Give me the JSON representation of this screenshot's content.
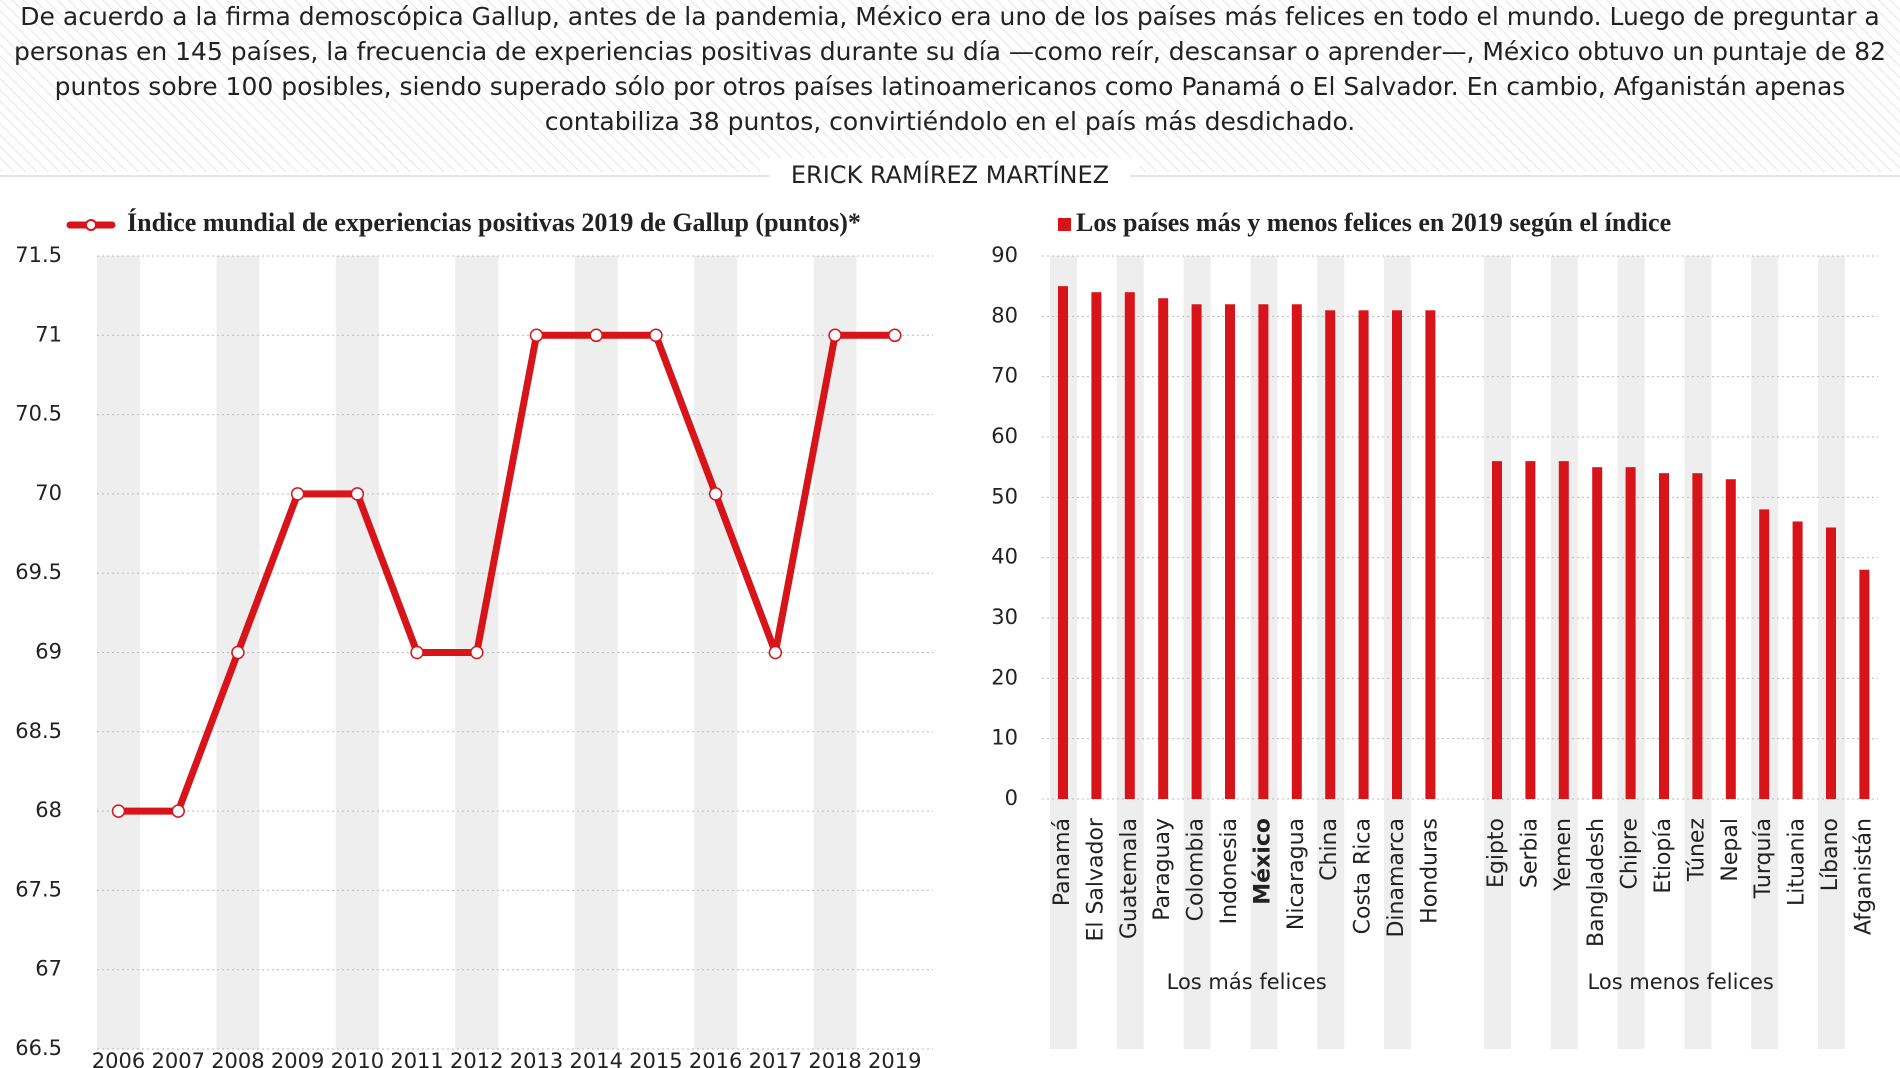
{
  "intro": {
    "text_lines": [
      "De acuerdo a la firma demoscópica Gallup, antes de la pandemia, México era uno de los países más felices en todo el mundo. Luego de preguntar a",
      "personas en 145 países, la frecuencia de experiencias positivas durante su día —como reír, descansar o aprender—, México obtuvo un puntaje de 82",
      "puntos sobre 100 posibles, siendo superado sólo por otros países latinoamericanos como Panamá o El Salvador. En cambio, Afganistán apenas",
      "contabiliza 38 puntos, convirtiéndolo en el país más desdichado."
    ],
    "byline": "ERICK RAMÍREZ MARTÍNEZ"
  },
  "chart_data": [
    {
      "type": "line",
      "title": "Índice mundial de experiencias positivas 2019 de Gallup (puntos)*",
      "categories": [
        "2006",
        "2007",
        "2008",
        "2009",
        "2010",
        "2011",
        "2012",
        "2013",
        "2014",
        "2015",
        "2016",
        "2017",
        "2018",
        "2019"
      ],
      "series": [
        {
          "name": "Índice mundial de experiencias positivas 2019 de Gallup (puntos)*",
          "color": "#d7141a",
          "values": [
            68,
            68,
            69,
            70,
            70,
            69,
            69,
            71,
            71,
            71,
            70,
            69,
            71,
            71
          ]
        }
      ],
      "ylim": [
        66.5,
        71.5
      ],
      "yticks": [
        66.5,
        67,
        67.5,
        68,
        68.5,
        69,
        69.5,
        70,
        70.5,
        71,
        71.5
      ],
      "grid": true
    },
    {
      "type": "bar",
      "title": "Los países más y menos felices en 2019 según el índice",
      "color": "#d7141a",
      "groups": [
        {
          "name": "Los más felices",
          "highlight": 6,
          "categories": [
            "Panamá",
            "El Salvador",
            "Guatemala",
            "Paraguay",
            "Colombia",
            "Indonesia",
            "México",
            "Nicaragua",
            "China",
            "Costa Rica",
            "Dinamarca",
            "Honduras"
          ],
          "values": [
            85,
            84,
            84,
            83,
            82,
            82,
            82,
            82,
            81,
            81,
            81,
            81
          ]
        },
        {
          "name": "Los menos felices",
          "categories": [
            "Egipto",
            "Serbia",
            "Yemen",
            "Bangladesh",
            "Chipre",
            "Etiopía",
            "Túnez",
            "Nepal",
            "Turquía",
            "Lituania",
            "Líbano",
            "Afganistán"
          ],
          "values": [
            56,
            56,
            56,
            55,
            55,
            54,
            54,
            53,
            48,
            46,
            45,
            38
          ]
        }
      ],
      "ylim": [
        0,
        90
      ],
      "yticks": [
        0,
        10,
        20,
        30,
        40,
        50,
        60,
        70,
        80,
        90
      ],
      "grid": true
    }
  ]
}
